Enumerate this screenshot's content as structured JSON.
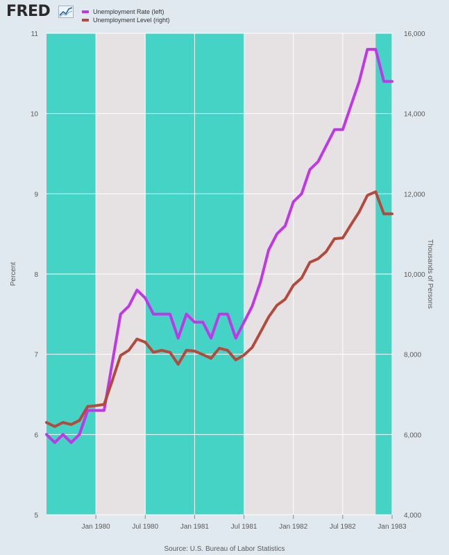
{
  "brand": {
    "logo_text": "FRED"
  },
  "legend": [
    {
      "label": "Unemployment Rate (left)",
      "color": "#bf37e8"
    },
    {
      "label": "Unemployment Level (right)",
      "color": "#b5493b"
    }
  ],
  "source_text": "Source: U.S. Bureau of Labor Statistics",
  "colors": {
    "page_bg": "#e1e9f0",
    "plot_bg": "#e6e2e4",
    "shade": "#44d3c5",
    "grid": "#ffffff"
  },
  "chart_data": {
    "type": "line",
    "x_unit": "month",
    "x": [
      "1979-07",
      "1979-08",
      "1979-09",
      "1979-10",
      "1979-11",
      "1979-12",
      "1980-01",
      "1980-02",
      "1980-03",
      "1980-04",
      "1980-05",
      "1980-06",
      "1980-07",
      "1980-08",
      "1980-09",
      "1980-10",
      "1980-11",
      "1980-12",
      "1981-01",
      "1981-02",
      "1981-03",
      "1981-04",
      "1981-05",
      "1981-06",
      "1981-07",
      "1981-08",
      "1981-09",
      "1981-10",
      "1981-11",
      "1981-12",
      "1982-01",
      "1982-02",
      "1982-03",
      "1982-04",
      "1982-05",
      "1982-06",
      "1982-07",
      "1982-08",
      "1982-09",
      "1982-10",
      "1982-11",
      "1982-12",
      "1983-01"
    ],
    "x_ticks": [
      "Jan 1980",
      "Jul 1980",
      "Jan 1981",
      "Jul 1981",
      "Jan 1982",
      "Jul 1982",
      "Jan 1983"
    ],
    "y_left": {
      "label": "Percent",
      "ylim": [
        5,
        11
      ],
      "ticks": [
        "5",
        "6",
        "7",
        "8",
        "9",
        "10",
        "11"
      ]
    },
    "y_right": {
      "label": "Thousands of Persons",
      "ylim": [
        4000,
        16000
      ],
      "ticks": [
        "4,000",
        "6,000",
        "8,000",
        "10,000",
        "12,000",
        "14,000",
        "16,000"
      ]
    },
    "grid": true,
    "legend_position": "top-left",
    "shaded_periods": [
      {
        "start": "1979-07",
        "end": "1980-01"
      },
      {
        "start": "1980-07",
        "end": "1981-07"
      },
      {
        "start": "1982-11",
        "end": "1983-01"
      }
    ],
    "series": [
      {
        "name": "Unemployment Rate (left)",
        "axis": "left",
        "color": "#bf37e8",
        "values": [
          6.0,
          5.9,
          6.0,
          5.9,
          6.0,
          6.3,
          6.3,
          6.3,
          6.9,
          7.5,
          7.6,
          7.8,
          7.7,
          7.5,
          7.5,
          7.5,
          7.2,
          7.5,
          7.4,
          7.4,
          7.2,
          7.5,
          7.5,
          7.2,
          7.4,
          7.6,
          7.9,
          8.3,
          8.5,
          8.6,
          8.9,
          9.0,
          9.3,
          9.4,
          9.6,
          9.8,
          9.8,
          10.1,
          10.4,
          10.8,
          10.8,
          10.4,
          10.4
        ]
      },
      {
        "name": "Unemployment Level (right)",
        "axis": "right",
        "color": "#b5493b",
        "values": [
          6300,
          6200,
          6300,
          6250,
          6350,
          6700,
          6720,
          6750,
          7350,
          7970,
          8100,
          8380,
          8300,
          8050,
          8100,
          8050,
          7750,
          8100,
          8080,
          7990,
          7900,
          8150,
          8100,
          7860,
          7980,
          8170,
          8550,
          8930,
          9220,
          9370,
          9720,
          9900,
          10290,
          10380,
          10560,
          10880,
          10900,
          11230,
          11550,
          11960,
          12050,
          11500,
          11500
        ]
      }
    ]
  }
}
